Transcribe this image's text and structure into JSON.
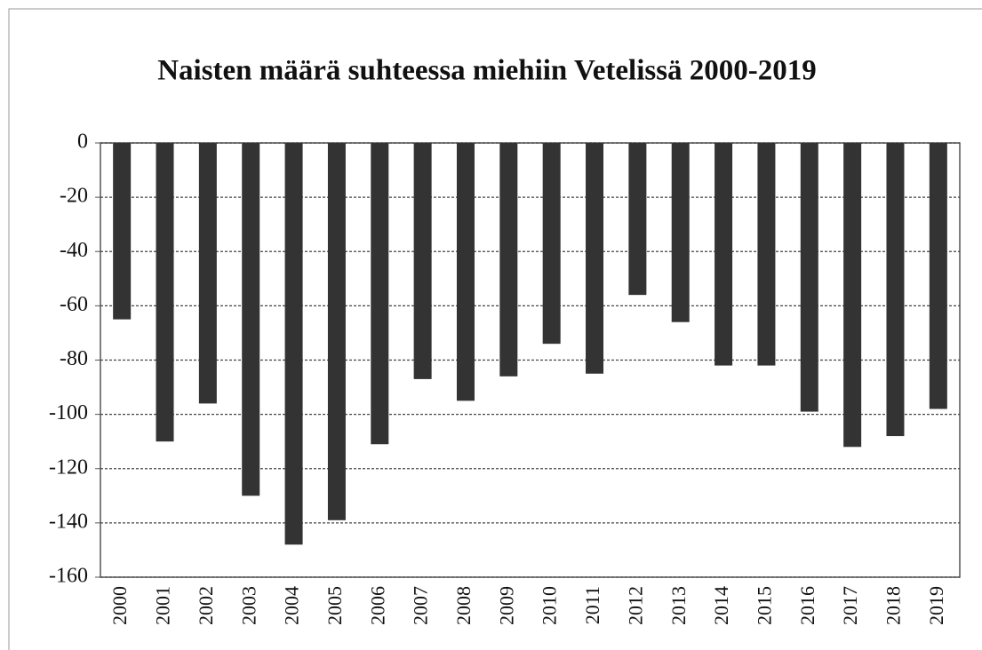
{
  "chart_data": {
    "type": "bar",
    "title": "Naisten määrä suhteessa miehiin Vetelissä 2000-2019",
    "categories": [
      "2000",
      "2001",
      "2002",
      "2003",
      "2004",
      "2005",
      "2006",
      "2007",
      "2008",
      "2009",
      "2010",
      "2011",
      "2012",
      "2013",
      "2014",
      "2015",
      "2016",
      "2017",
      "2018",
      "2019"
    ],
    "values": [
      -65,
      -110,
      -96,
      -130,
      -148,
      -139,
      -111,
      -87,
      -95,
      -86,
      -74,
      -85,
      -56,
      -66,
      -82,
      -82,
      -99,
      -112,
      -108,
      -98
    ],
    "color": "#333333",
    "ylim": [
      -160,
      0
    ],
    "yticks": [
      0,
      -20,
      -40,
      -60,
      -80,
      -100,
      -120,
      -140,
      -160
    ],
    "grid": true
  }
}
